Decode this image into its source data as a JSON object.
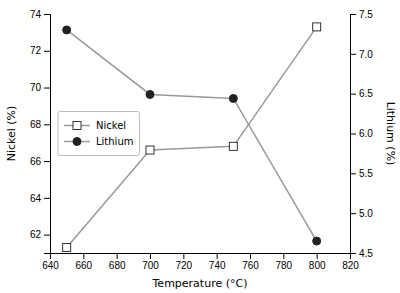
{
  "chart_data": {
    "type": "line",
    "xlabel": "Temperature (°C)",
    "ylabel": "Nickel (%)",
    "y2label": "Lithium (%)",
    "x": [
      650,
      700,
      750,
      800
    ],
    "series": [
      {
        "name": "Nickel",
        "color": "#999999",
        "marker": "square",
        "values": [
          61.3,
          66.6,
          66.8,
          73.3
        ]
      },
      {
        "name": "Lithium",
        "color": "#999999",
        "marker": "circle",
        "axis": "y2",
        "values": [
          7.3,
          6.49,
          6.44,
          4.65
        ]
      }
    ],
    "xlim": [
      640,
      820
    ],
    "xticks": [
      640,
      660,
      680,
      700,
      720,
      740,
      760,
      780,
      800,
      820
    ],
    "ylim": [
      61,
      74
    ],
    "yticks": [
      62,
      64,
      66,
      68,
      70,
      72,
      74
    ],
    "y2lim": [
      4.5,
      7.5
    ],
    "y2ticks": [
      4.5,
      {
        "value": 5.0,
        "label": "5.0"
      },
      5.5,
      {
        "value": 6.0,
        "label": "6.0"
      },
      6.5,
      {
        "value": 7.0,
        "label": "7.0"
      },
      7.5
    ],
    "grid": false,
    "legend": "left"
  }
}
